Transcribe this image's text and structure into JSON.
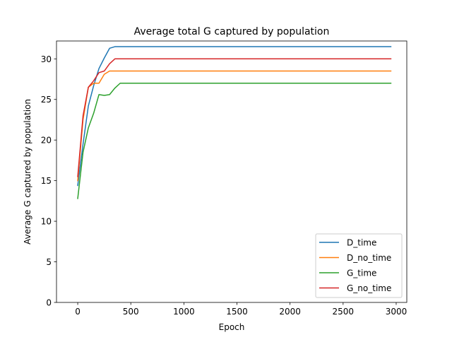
{
  "chart_data": {
    "type": "line",
    "title": "Average total G captured by population",
    "xlabel": "Epoch",
    "ylabel": "Average G captured by population",
    "xlim": [
      -200,
      3100
    ],
    "ylim": [
      0,
      32.2
    ],
    "xticks": [
      0,
      500,
      1000,
      1500,
      2000,
      2500,
      3000
    ],
    "yticks": [
      0,
      5,
      10,
      15,
      20,
      25,
      30
    ],
    "grid": false,
    "legend_position": "lower-right",
    "series": [
      {
        "name": "D_time",
        "color": "#1f77b4",
        "x": [
          0,
          50,
          100,
          150,
          200,
          250,
          300,
          350,
          400,
          500,
          1000,
          1500,
          2000,
          2500,
          2950
        ],
        "y": [
          14.4,
          19.5,
          24.2,
          26.7,
          28.8,
          30.1,
          31.3,
          31.5,
          31.5,
          31.5,
          31.5,
          31.5,
          31.5,
          31.5,
          31.5
        ]
      },
      {
        "name": "D_no_time",
        "color": "#ff7f0e",
        "x": [
          0,
          50,
          100,
          150,
          200,
          250,
          300,
          350,
          400,
          500,
          1000,
          1500,
          2000,
          2500,
          2950
        ],
        "y": [
          15.0,
          22.5,
          26.5,
          27.0,
          27.0,
          28.1,
          28.5,
          28.5,
          28.5,
          28.5,
          28.5,
          28.5,
          28.5,
          28.5,
          28.5
        ]
      },
      {
        "name": "G_time",
        "color": "#2ca02c",
        "x": [
          0,
          50,
          100,
          150,
          200,
          250,
          300,
          350,
          400,
          500,
          1000,
          1500,
          2000,
          2500,
          2950
        ],
        "y": [
          12.8,
          18.5,
          21.5,
          23.3,
          25.6,
          25.5,
          25.6,
          26.4,
          27.0,
          27.0,
          27.0,
          27.0,
          27.0,
          27.0,
          27.0
        ]
      },
      {
        "name": "G_no_time",
        "color": "#d62728",
        "x": [
          0,
          50,
          100,
          150,
          200,
          250,
          300,
          350,
          400,
          500,
          1000,
          1500,
          2000,
          2500,
          2950
        ],
        "y": [
          15.5,
          23.0,
          26.5,
          27.3,
          28.3,
          28.5,
          29.4,
          30.0,
          30.0,
          30.0,
          30.0,
          30.0,
          30.0,
          30.0,
          30.0
        ]
      }
    ]
  }
}
